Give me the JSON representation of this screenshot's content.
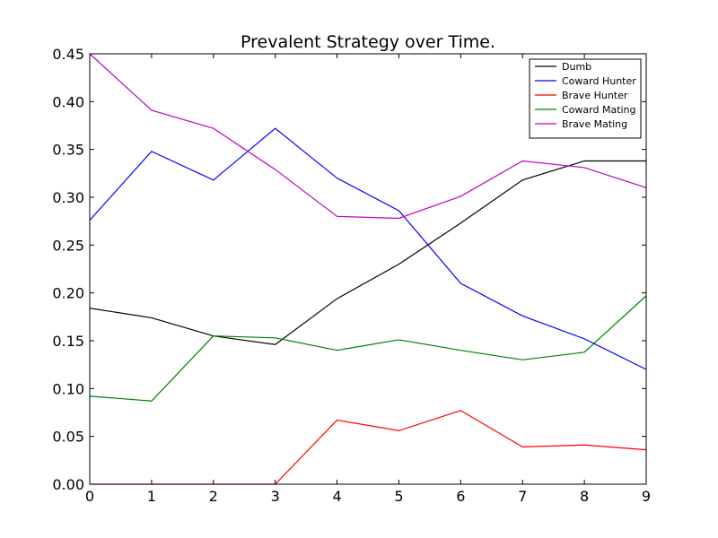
{
  "chart_data": {
    "type": "line",
    "title": "Prevalent Strategy over Time.",
    "xlabel": "",
    "ylabel": "",
    "x": [
      0,
      1,
      2,
      3,
      4,
      5,
      6,
      7,
      8,
      9
    ],
    "xlim": [
      0,
      9
    ],
    "ylim": [
      0,
      0.45
    ],
    "xticks": [
      "0",
      "1",
      "2",
      "3",
      "4",
      "5",
      "6",
      "7",
      "8",
      "9"
    ],
    "yticks": [
      "0.00",
      "0.05",
      "0.10",
      "0.15",
      "0.20",
      "0.25",
      "0.30",
      "0.35",
      "0.40",
      "0.45"
    ],
    "grid": false,
    "legend_position": "top-right",
    "series": [
      {
        "name": "Dumb",
        "color": "#000000",
        "values": [
          0.184,
          0.174,
          0.155,
          0.146,
          0.194,
          0.23,
          0.273,
          0.318,
          0.338,
          0.338
        ]
      },
      {
        "name": "Coward Hunter",
        "color": "#0000ff",
        "values": [
          0.276,
          0.348,
          0.318,
          0.372,
          0.32,
          0.286,
          0.21,
          0.176,
          0.152,
          0.12
        ]
      },
      {
        "name": "Brave Hunter",
        "color": "#ff0000",
        "values": [
          0.0,
          0.0,
          0.0,
          0.0,
          0.067,
          0.056,
          0.077,
          0.039,
          0.041,
          0.036
        ]
      },
      {
        "name": "Coward Mating",
        "color": "#008000",
        "values": [
          0.092,
          0.087,
          0.155,
          0.153,
          0.14,
          0.151,
          0.14,
          0.13,
          0.138,
          0.197
        ]
      },
      {
        "name": "Brave Mating",
        "color": "#bf00bf",
        "values": [
          0.45,
          0.391,
          0.372,
          0.329,
          0.28,
          0.278,
          0.301,
          0.338,
          0.331,
          0.31
        ]
      }
    ]
  }
}
